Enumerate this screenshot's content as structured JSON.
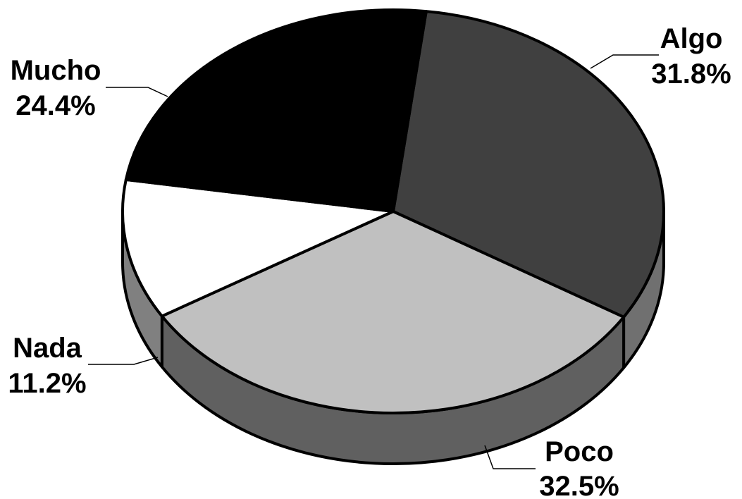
{
  "chart_data": {
    "type": "pie",
    "title": "",
    "style": "3d",
    "slices": [
      {
        "label": "Algo",
        "value": 31.8,
        "value_label": "31.8%",
        "color": "#404040"
      },
      {
        "label": "Poco",
        "value": 32.5,
        "value_label": "32.5%",
        "color": "#c0c0c0"
      },
      {
        "label": "Nada",
        "value": 11.2,
        "value_label": "11.2%",
        "color": "#ffffff"
      },
      {
        "label": "Mucho",
        "value": 24.4,
        "value_label": "24.4%",
        "color": "#000000"
      }
    ],
    "side_colors": {
      "Poco": "#606060",
      "Nada": "#808080"
    }
  }
}
